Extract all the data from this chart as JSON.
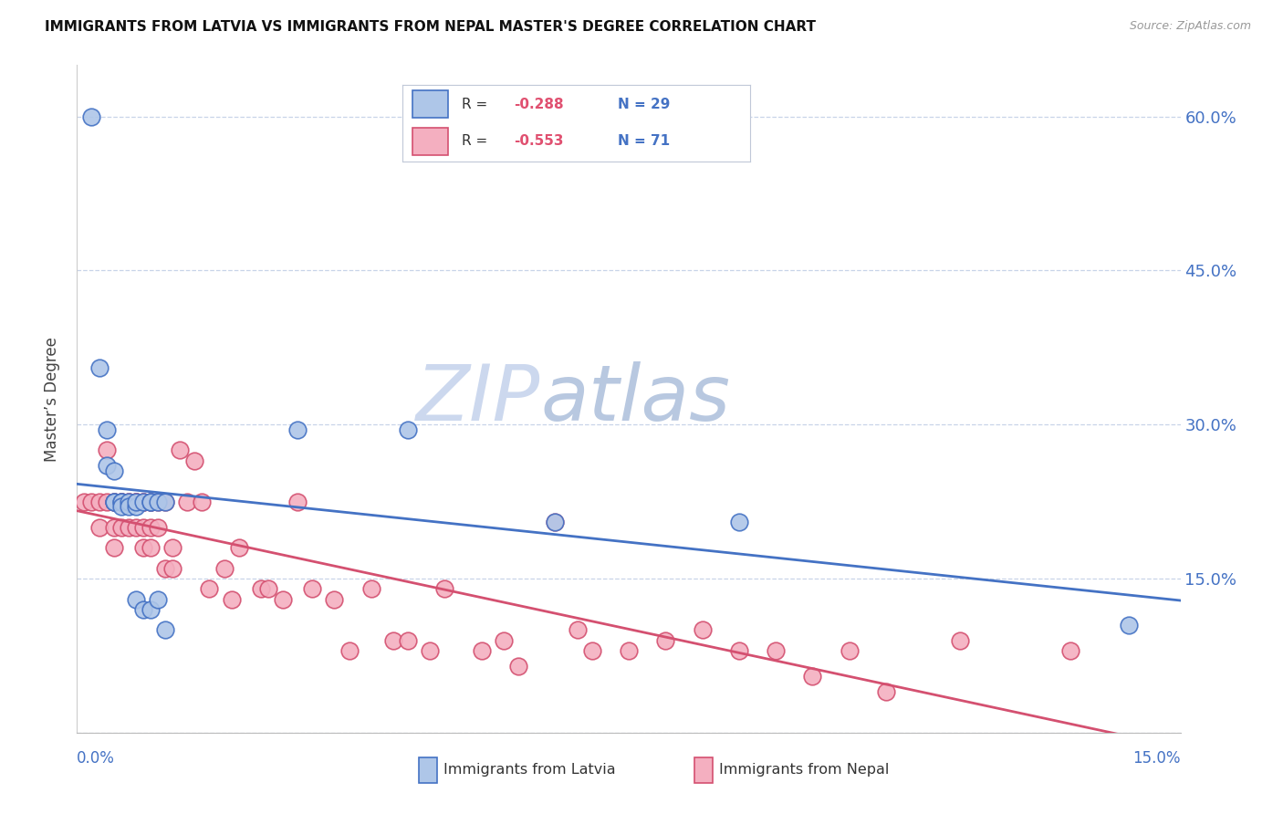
{
  "title": "IMMIGRANTS FROM LATVIA VS IMMIGRANTS FROM NEPAL MASTER'S DEGREE CORRELATION CHART",
  "source": "Source: ZipAtlas.com",
  "ylabel": "Master’s Degree",
  "xmin": 0.0,
  "xmax": 0.15,
  "ymin": 0.0,
  "ymax": 0.65,
  "yticks": [
    0.0,
    0.15,
    0.3,
    0.45,
    0.6
  ],
  "ytick_labels": [
    "",
    "15.0%",
    "30.0%",
    "45.0%",
    "60.0%"
  ],
  "xtick_positions": [
    0.0,
    0.03,
    0.06,
    0.09,
    0.12,
    0.15
  ],
  "color_latvia": "#aec6e8",
  "color_nepal": "#f4afc0",
  "color_latvia_line": "#4472c4",
  "color_nepal_line": "#d45070",
  "color_axis_text": "#4472c4",
  "watermark_zip": "ZIP",
  "watermark_atlas": "atlas",
  "latvia_x": [
    0.002,
    0.003,
    0.004,
    0.004,
    0.005,
    0.005,
    0.005,
    0.006,
    0.006,
    0.006,
    0.007,
    0.007,
    0.008,
    0.008,
    0.008,
    0.009,
    0.009,
    0.01,
    0.01,
    0.01,
    0.011,
    0.011,
    0.012,
    0.012,
    0.03,
    0.045,
    0.065,
    0.09,
    0.143
  ],
  "latvia_y": [
    0.6,
    0.355,
    0.295,
    0.26,
    0.255,
    0.225,
    0.225,
    0.225,
    0.225,
    0.22,
    0.225,
    0.22,
    0.22,
    0.225,
    0.13,
    0.225,
    0.12,
    0.225,
    0.225,
    0.12,
    0.225,
    0.13,
    0.1,
    0.225,
    0.295,
    0.295,
    0.205,
    0.205,
    0.105
  ],
  "nepal_x": [
    0.001,
    0.002,
    0.003,
    0.003,
    0.004,
    0.004,
    0.005,
    0.005,
    0.005,
    0.005,
    0.006,
    0.006,
    0.006,
    0.006,
    0.007,
    0.007,
    0.007,
    0.008,
    0.008,
    0.008,
    0.008,
    0.009,
    0.009,
    0.009,
    0.009,
    0.01,
    0.01,
    0.01,
    0.01,
    0.011,
    0.011,
    0.012,
    0.012,
    0.013,
    0.013,
    0.014,
    0.015,
    0.016,
    0.017,
    0.018,
    0.02,
    0.021,
    0.022,
    0.025,
    0.026,
    0.028,
    0.03,
    0.032,
    0.035,
    0.037,
    0.04,
    0.043,
    0.045,
    0.048,
    0.05,
    0.055,
    0.058,
    0.06,
    0.065,
    0.068,
    0.07,
    0.075,
    0.08,
    0.085,
    0.09,
    0.095,
    0.1,
    0.105,
    0.11,
    0.12,
    0.135
  ],
  "nepal_y": [
    0.225,
    0.225,
    0.225,
    0.2,
    0.275,
    0.225,
    0.225,
    0.225,
    0.2,
    0.18,
    0.225,
    0.225,
    0.225,
    0.2,
    0.225,
    0.225,
    0.2,
    0.225,
    0.225,
    0.225,
    0.2,
    0.225,
    0.225,
    0.2,
    0.18,
    0.225,
    0.225,
    0.2,
    0.18,
    0.225,
    0.2,
    0.16,
    0.225,
    0.18,
    0.16,
    0.275,
    0.225,
    0.265,
    0.225,
    0.14,
    0.16,
    0.13,
    0.18,
    0.14,
    0.14,
    0.13,
    0.225,
    0.14,
    0.13,
    0.08,
    0.14,
    0.09,
    0.09,
    0.08,
    0.14,
    0.08,
    0.09,
    0.065,
    0.205,
    0.1,
    0.08,
    0.08,
    0.09,
    0.1,
    0.08,
    0.08,
    0.055,
    0.08,
    0.04,
    0.09,
    0.08
  ]
}
